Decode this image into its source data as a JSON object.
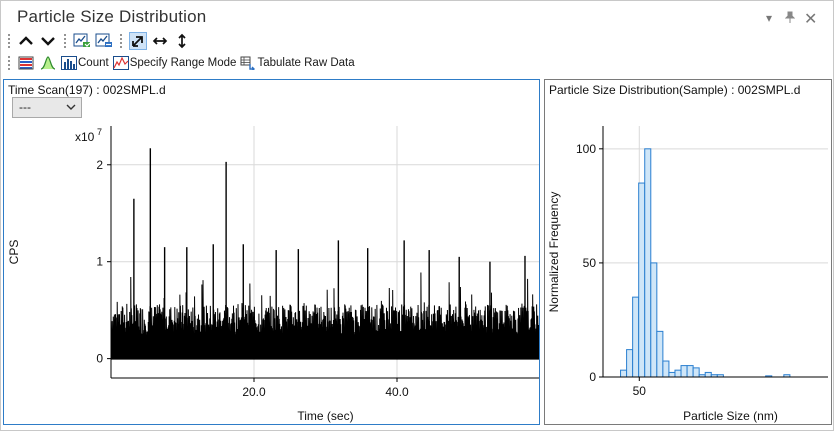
{
  "window": {
    "title": "Particle Size Distribution",
    "controls": {
      "dropdown_icon": "triangle-down-icon",
      "pin_icon": "pin-icon",
      "close_icon": "close-icon"
    }
  },
  "toolbar1": {
    "items": [
      {
        "name": "move-up-button",
        "icon": "chevron-up-icon"
      },
      {
        "name": "move-down-button",
        "icon": "chevron-down-icon"
      },
      {
        "name": "import-chart-button",
        "icon": "chart-import-icon"
      },
      {
        "name": "export-chart-button",
        "icon": "chart-export-icon"
      },
      {
        "name": "autoscale-button",
        "icon": "diagonal-arrow-icon",
        "selected": true
      },
      {
        "name": "autoscale-x-button",
        "icon": "horizontal-arrow-icon"
      },
      {
        "name": "autoscale-y-button",
        "icon": "vertical-arrow-icon"
      }
    ]
  },
  "toolbar2": {
    "count_label": "Count",
    "range_label": "Specify Range Mode",
    "tabulate_label": "Tabulate Raw Data"
  },
  "time_scan": {
    "title": "Time Scan(197) : 002SMPL.d",
    "selector_value": "---",
    "chart_data": {
      "type": "line",
      "xlabel": "Time (sec)",
      "ylabel": "CPS",
      "y_multiplier": "x10",
      "y_exponent": "7",
      "x_ticks": [
        "20.0",
        "40.0"
      ],
      "x_tick_values": [
        20,
        40
      ],
      "y_ticks": [
        "0",
        "1",
        "2"
      ],
      "y_tick_values": [
        0,
        1,
        2
      ],
      "xlim": [
        0,
        60
      ],
      "ylim": [
        -0.2,
        2.4
      ],
      "baseline": 0.45,
      "peaks": [
        {
          "x": 3.2,
          "y": 1.65
        },
        {
          "x": 5.5,
          "y": 2.17
        },
        {
          "x": 7.5,
          "y": 1.15
        },
        {
          "x": 10.6,
          "y": 1.15
        },
        {
          "x": 14.3,
          "y": 1.18
        },
        {
          "x": 16.1,
          "y": 2.03
        },
        {
          "x": 18.5,
          "y": 1.18
        },
        {
          "x": 23.1,
          "y": 1.12
        },
        {
          "x": 26.2,
          "y": 1.13
        },
        {
          "x": 31.8,
          "y": 1.22
        },
        {
          "x": 35.9,
          "y": 1.14
        },
        {
          "x": 41.0,
          "y": 1.22
        },
        {
          "x": 44.5,
          "y": 1.12
        },
        {
          "x": 48.7,
          "y": 1.05
        },
        {
          "x": 53.0,
          "y": 1.0
        },
        {
          "x": 57.9,
          "y": 1.06
        }
      ]
    }
  },
  "psd": {
    "title": "Particle Size Distribution(Sample) : 002SMPL.d",
    "chart_data": {
      "type": "bar",
      "xlabel": "Particle Size (nm)",
      "ylabel": "Normalized Frequency",
      "x_ticks": [
        "50"
      ],
      "x_tick_values": [
        50
      ],
      "y_ticks": [
        "0",
        "50",
        "100"
      ],
      "y_tick_values": [
        0,
        50,
        100
      ],
      "xlim": [
        35,
        128
      ],
      "ylim": [
        0,
        110
      ],
      "bin_width": 2.5,
      "bins": [
        {
          "x": 43.5,
          "y": 3
        },
        {
          "x": 46.0,
          "y": 12
        },
        {
          "x": 48.5,
          "y": 35
        },
        {
          "x": 51.0,
          "y": 85
        },
        {
          "x": 53.5,
          "y": 100
        },
        {
          "x": 56.0,
          "y": 50
        },
        {
          "x": 58.5,
          "y": 20
        },
        {
          "x": 61.0,
          "y": 7
        },
        {
          "x": 63.5,
          "y": 2
        },
        {
          "x": 66.0,
          "y": 3
        },
        {
          "x": 68.5,
          "y": 5
        },
        {
          "x": 71.0,
          "y": 5
        },
        {
          "x": 73.5,
          "y": 4
        },
        {
          "x": 76.0,
          "y": 1
        },
        {
          "x": 78.5,
          "y": 2
        },
        {
          "x": 81.0,
          "y": 1
        },
        {
          "x": 83.5,
          "y": 1
        },
        {
          "x": 103.5,
          "y": 0.5
        },
        {
          "x": 111.0,
          "y": 1
        }
      ],
      "bar_fill": "#cfe6f8",
      "bar_stroke": "#2a7fd0"
    }
  }
}
